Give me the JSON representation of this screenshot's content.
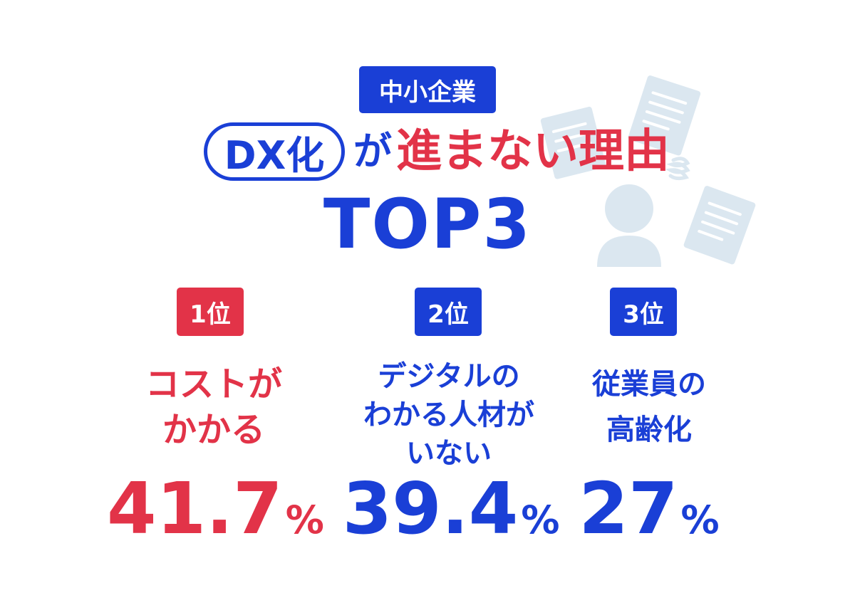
{
  "header": {
    "category_badge": "中小企業",
    "dx_pill": "DX化",
    "particle": "が",
    "title_main": "進まない理由",
    "title_rank": "TOP3"
  },
  "ranks": [
    {
      "badge": "1位",
      "reason_lines": [
        "コストが",
        "かかる"
      ],
      "percent_value": "41.7",
      "percent_unit": "%",
      "color": "#e23348"
    },
    {
      "badge": "2位",
      "reason_lines": [
        "デジタルの",
        "わかる人材が",
        "いない"
      ],
      "percent_value": "39.4",
      "percent_unit": "%",
      "color": "#1a3fd6"
    },
    {
      "badge": "3位",
      "reason_lines": [
        "従業員の",
        "高齢化"
      ],
      "percent_value": "27",
      "percent_unit": "%",
      "color": "#1a3fd6"
    }
  ],
  "colors": {
    "primary_blue": "#1a3fd6",
    "accent_red": "#e23348",
    "illustration": "#dbe7f0"
  },
  "icons": [
    "person-icon",
    "document-icon",
    "spiral-icon"
  ]
}
